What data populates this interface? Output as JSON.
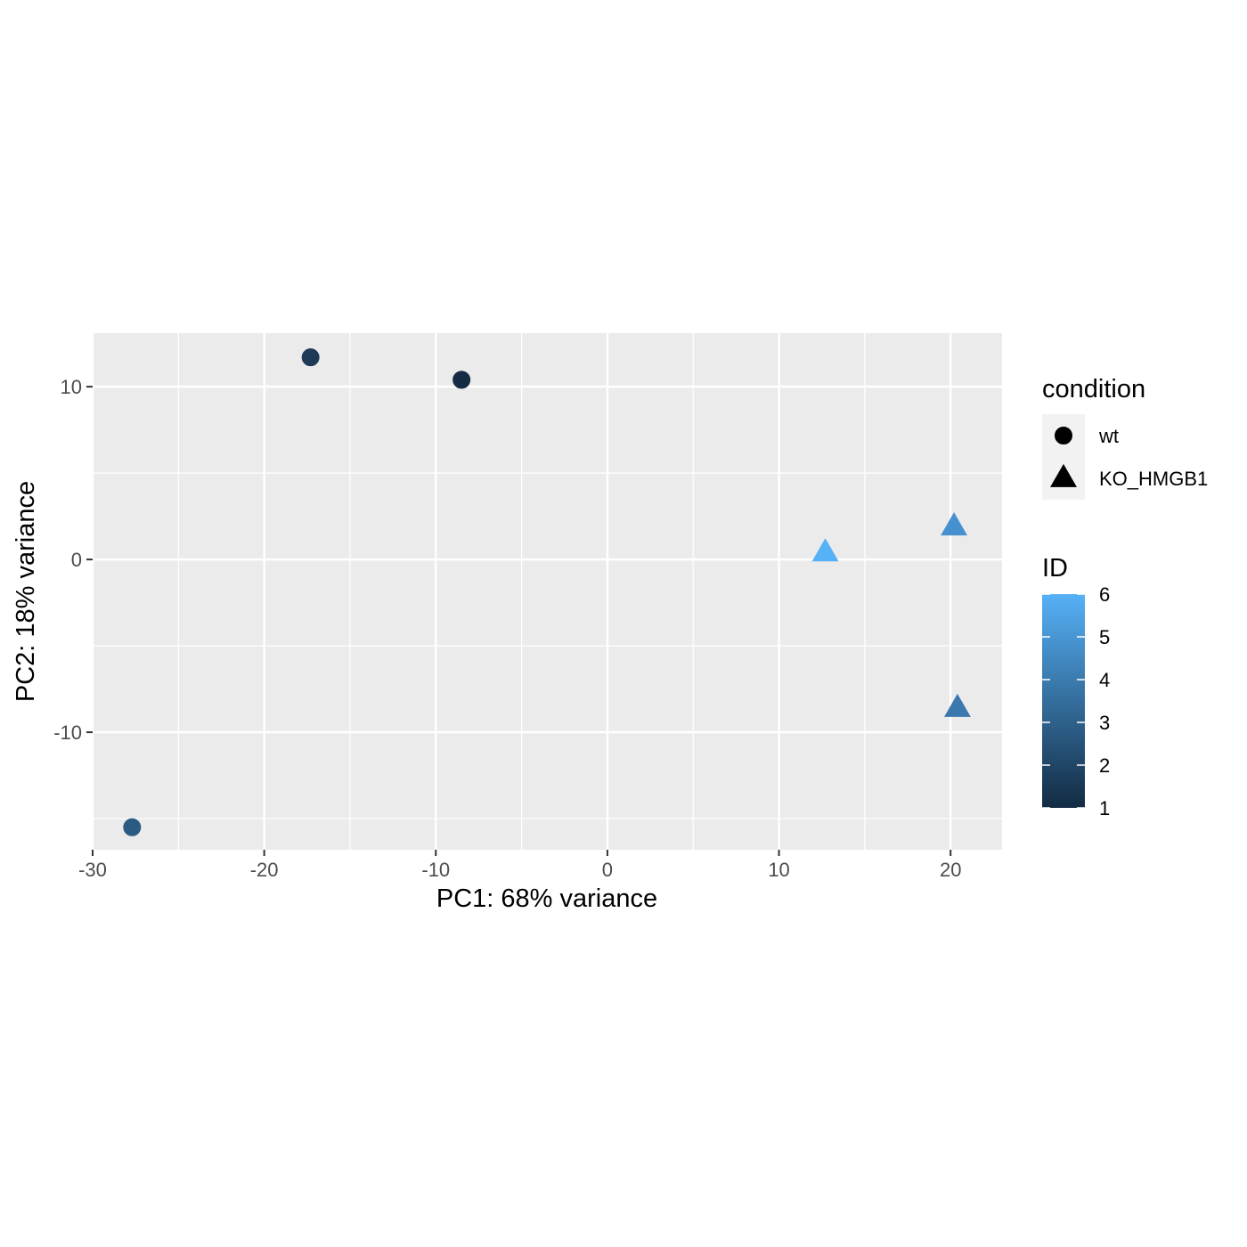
{
  "chart_data": {
    "type": "scatter",
    "xlabel": "PC1: 68% variance",
    "ylabel": "PC2: 18% variance",
    "xlim": [
      -30,
      23
    ],
    "ylim": [
      -16.8,
      13.1
    ],
    "x_ticks": [
      -30,
      -20,
      -10,
      0,
      10,
      20
    ],
    "y_ticks": [
      -10,
      0,
      10
    ],
    "x_tick_labels": [
      "-30",
      "-20",
      "-10",
      "0",
      "10",
      "20"
    ],
    "y_tick_labels": [
      "-10",
      "0",
      "10"
    ],
    "grid": true,
    "legend_position": "right",
    "points": [
      {
        "x": -27.7,
        "y": -15.5,
        "condition": "wt",
        "id": 3,
        "color": "#2b5a83"
      },
      {
        "x": -17.3,
        "y": 11.7,
        "condition": "wt",
        "id": 2,
        "color": "#1e3a56"
      },
      {
        "x": -8.5,
        "y": 10.4,
        "condition": "wt",
        "id": 1,
        "color": "#132b43"
      },
      {
        "x": 12.7,
        "y": 0.4,
        "condition": "KO_HMGB1",
        "id": 6,
        "color": "#56b1f7"
      },
      {
        "x": 20.2,
        "y": 1.9,
        "condition": "KO_HMGB1",
        "id": 5,
        "color": "#4690cf"
      },
      {
        "x": 20.4,
        "y": -8.6,
        "condition": "KO_HMGB1",
        "id": 4,
        "color": "#3a78ae"
      }
    ],
    "shape_legend": {
      "title": "condition",
      "items": [
        {
          "label": "wt",
          "shape": "circle"
        },
        {
          "label": "KO_HMGB1",
          "shape": "triangle"
        }
      ]
    },
    "color_legend": {
      "title": "ID",
      "min": 1,
      "max": 6,
      "low_color": "#132b43",
      "high_color": "#56b1f7",
      "breaks": [
        1,
        2,
        3,
        4,
        5,
        6
      ],
      "break_labels": [
        "1",
        "2",
        "3",
        "4",
        "5",
        "6"
      ]
    }
  },
  "colors": {
    "panel_background": "#ebebeb",
    "grid_line": "#ffffff",
    "tick_text": "#4d4d4d",
    "axis_tick": "#333333"
  }
}
